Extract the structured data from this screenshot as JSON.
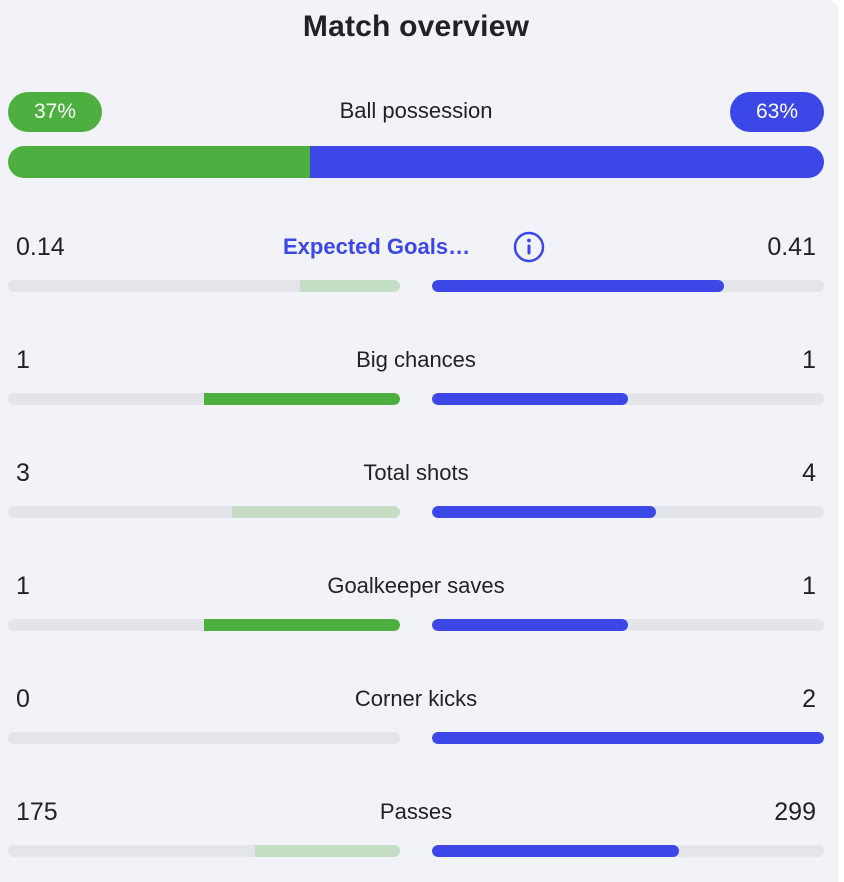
{
  "title": "Match overview",
  "colors": {
    "home": "#4caf3f",
    "home_light": "#c3dec5",
    "away": "#3c47e8",
    "track": "#e4e5ea",
    "background": "#f2f3f8",
    "text": "#222226"
  },
  "possession": {
    "label": "Ball possession",
    "home_text": "37%",
    "away_text": "63%",
    "home_value": 37,
    "away_value": 63
  },
  "stats": [
    {
      "label": "Expected Goals…",
      "home": "0.14",
      "away": "0.41",
      "home_share": 0.255,
      "away_share": 0.745,
      "winner": "away",
      "is_link": true,
      "icon": "info-icon"
    },
    {
      "label": "Big chances",
      "home": "1",
      "away": "1",
      "home_share": 0.5,
      "away_share": 0.5,
      "winner": "tie"
    },
    {
      "label": "Total shots",
      "home": "3",
      "away": "4",
      "home_share": 0.4286,
      "away_share": 0.5714,
      "winner": "away"
    },
    {
      "label": "Goalkeeper saves",
      "home": "1",
      "away": "1",
      "home_share": 0.5,
      "away_share": 0.5,
      "winner": "tie"
    },
    {
      "label": "Corner kicks",
      "home": "0",
      "away": "2",
      "home_share": 0,
      "away_share": 1,
      "winner": "away"
    },
    {
      "label": "Passes",
      "home": "175",
      "away": "299",
      "home_share": 0.3692,
      "away_share": 0.6308,
      "winner": "away"
    }
  ]
}
